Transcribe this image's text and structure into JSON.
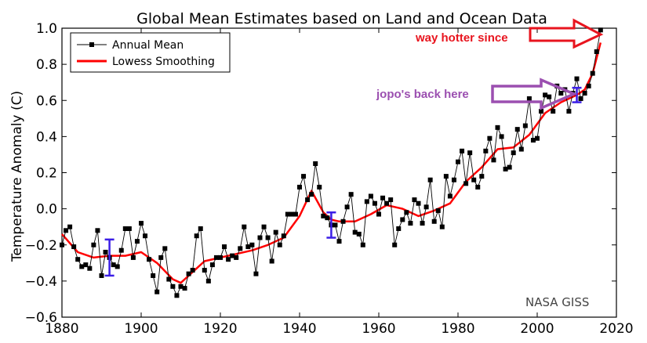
{
  "chart_data": {
    "type": "line",
    "title": "Global Mean Estimates based on Land and Ocean Data",
    "xlabel": "",
    "ylabel": "Temperature Anomaly (C)",
    "xlim": [
      1880,
      2020
    ],
    "ylim": [
      -0.6,
      1.0
    ],
    "xticks": [
      1880,
      1900,
      1920,
      1940,
      1960,
      1980,
      2000,
      2020
    ],
    "yticks": [
      -0.6,
      -0.4,
      -0.2,
      0.0,
      0.2,
      0.4,
      0.6,
      0.8,
      1.0
    ],
    "xtick_labels": [
      "1880",
      "1900",
      "1920",
      "1940",
      "1960",
      "1980",
      "2000",
      "2020"
    ],
    "ytick_labels": [
      "−0.6",
      "−0.4",
      "−0.2",
      "0.0",
      "0.2",
      "0.4",
      "0.6",
      "0.8",
      "1.0"
    ],
    "grid": false,
    "legend": "top-left",
    "series": [
      {
        "name": "Annual Mean",
        "color": "#000000",
        "marker": "square",
        "x": [
          1880,
          1881,
          1882,
          1883,
          1884,
          1885,
          1886,
          1887,
          1888,
          1889,
          1890,
          1891,
          1892,
          1893,
          1894,
          1895,
          1896,
          1897,
          1898,
          1899,
          1900,
          1901,
          1902,
          1903,
          1904,
          1905,
          1906,
          1907,
          1908,
          1909,
          1910,
          1911,
          1912,
          1913,
          1914,
          1915,
          1916,
          1917,
          1918,
          1919,
          1920,
          1921,
          1922,
          1923,
          1924,
          1925,
          1926,
          1927,
          1928,
          1929,
          1930,
          1931,
          1932,
          1933,
          1934,
          1935,
          1936,
          1937,
          1938,
          1939,
          1940,
          1941,
          1942,
          1943,
          1944,
          1945,
          1946,
          1947,
          1948,
          1949,
          1950,
          1951,
          1952,
          1953,
          1954,
          1955,
          1956,
          1957,
          1958,
          1959,
          1960,
          1961,
          1962,
          1963,
          1964,
          1965,
          1966,
          1967,
          1968,
          1969,
          1970,
          1971,
          1972,
          1973,
          1974,
          1975,
          1976,
          1977,
          1978,
          1979,
          1980,
          1981,
          1982,
          1983,
          1984,
          1985,
          1986,
          1987,
          1988,
          1989,
          1990,
          1991,
          1992,
          1993,
          1994,
          1995,
          1996,
          1997,
          1998,
          1999,
          2000,
          2001,
          2002,
          2003,
          2004,
          2005,
          2006,
          2007,
          2008,
          2009,
          2010,
          2011,
          2012,
          2013,
          2014,
          2015,
          2016
        ],
        "values": [
          -0.2,
          -0.12,
          -0.1,
          -0.21,
          -0.28,
          -0.32,
          -0.31,
          -0.33,
          -0.2,
          -0.12,
          -0.37,
          -0.24,
          -0.27,
          -0.31,
          -0.32,
          -0.23,
          -0.11,
          -0.11,
          -0.27,
          -0.18,
          -0.08,
          -0.15,
          -0.28,
          -0.37,
          -0.46,
          -0.27,
          -0.22,
          -0.39,
          -0.43,
          -0.48,
          -0.43,
          -0.44,
          -0.36,
          -0.34,
          -0.15,
          -0.11,
          -0.34,
          -0.4,
          -0.31,
          -0.27,
          -0.27,
          -0.21,
          -0.28,
          -0.26,
          -0.27,
          -0.22,
          -0.1,
          -0.21,
          -0.2,
          -0.36,
          -0.16,
          -0.1,
          -0.16,
          -0.29,
          -0.13,
          -0.2,
          -0.15,
          -0.03,
          -0.03,
          -0.03,
          0.12,
          0.18,
          0.05,
          0.08,
          0.25,
          0.12,
          -0.04,
          -0.05,
          -0.09,
          -0.09,
          -0.18,
          -0.07,
          0.01,
          0.08,
          -0.13,
          -0.14,
          -0.2,
          0.04,
          0.07,
          0.03,
          -0.03,
          0.06,
          0.03,
          0.05,
          -0.2,
          -0.11,
          -0.06,
          -0.02,
          -0.08,
          0.05,
          0.03,
          -0.08,
          0.01,
          0.16,
          -0.07,
          -0.01,
          -0.1,
          0.18,
          0.07,
          0.16,
          0.26,
          0.32,
          0.14,
          0.31,
          0.16,
          0.12,
          0.18,
          0.32,
          0.39,
          0.27,
          0.45,
          0.4,
          0.22,
          0.23,
          0.31,
          0.44,
          0.33,
          0.46,
          0.61,
          0.38,
          0.39,
          0.54,
          0.63,
          0.62,
          0.54,
          0.68,
          0.64,
          0.66,
          0.54,
          0.64,
          0.72,
          0.61,
          0.64,
          0.68,
          0.75,
          0.87,
          0.99
        ]
      },
      {
        "name": "Lowess Smoothing",
        "color": "#ff0000",
        "x": [
          1880,
          1884,
          1888,
          1892,
          1896,
          1900,
          1904,
          1908,
          1910,
          1912,
          1916,
          1920,
          1924,
          1928,
          1932,
          1936,
          1940,
          1943,
          1946,
          1948,
          1950,
          1954,
          1958,
          1962,
          1966,
          1970,
          1974,
          1978,
          1982,
          1986,
          1990,
          1994,
          1998,
          2002,
          2006,
          2010,
          2012,
          2014,
          2016
        ],
        "values": [
          -0.14,
          -0.24,
          -0.27,
          -0.26,
          -0.26,
          -0.24,
          -0.3,
          -0.39,
          -0.41,
          -0.37,
          -0.29,
          -0.27,
          -0.25,
          -0.23,
          -0.2,
          -0.16,
          -0.04,
          0.1,
          -0.02,
          -0.06,
          -0.07,
          -0.07,
          -0.03,
          0.02,
          0.0,
          -0.04,
          -0.01,
          0.03,
          0.15,
          0.23,
          0.33,
          0.34,
          0.41,
          0.53,
          0.59,
          0.63,
          0.66,
          0.75,
          0.92
        ]
      }
    ],
    "error_bars": [
      {
        "x": 1892,
        "y": -0.27,
        "low": -0.37,
        "high": -0.17
      },
      {
        "x": 1948,
        "y": -0.09,
        "low": -0.16,
        "high": -0.02
      },
      {
        "x": 2010,
        "y": 0.63,
        "low": 0.59,
        "high": 0.67
      }
    ],
    "annotations": {
      "watermark": "NASA GISS",
      "red_note": "way hotter since",
      "purple_note": "jopo's back here"
    },
    "colors": {
      "annual": "#000000",
      "lowess": "#ff0000",
      "error_bar": "#3b1ee6",
      "red_arrow": "#e8141e",
      "purple_arrow": "#9b4fb0"
    }
  }
}
